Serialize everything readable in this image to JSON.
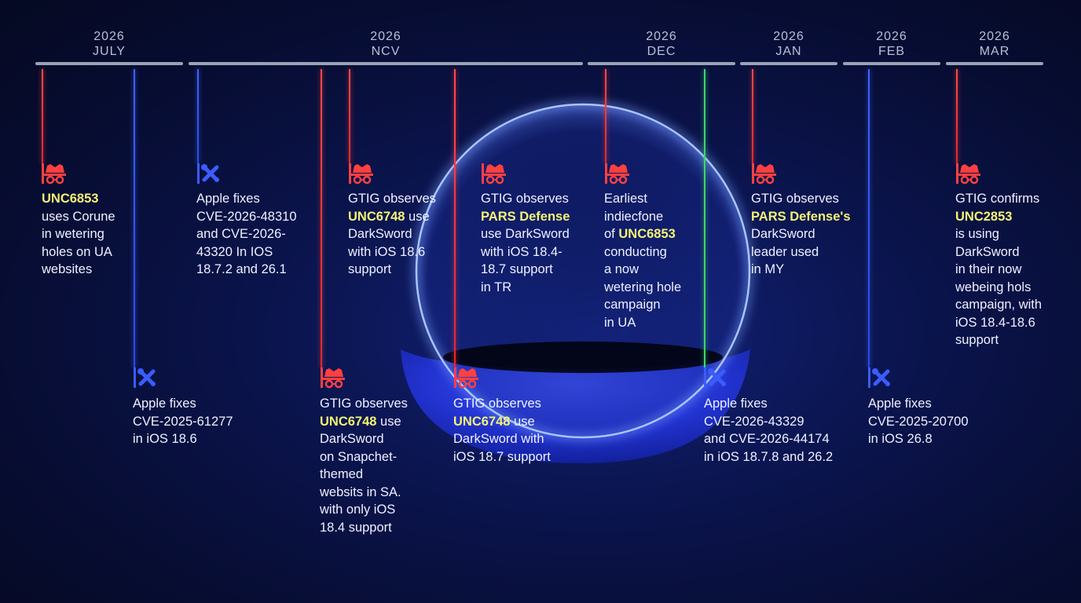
{
  "colors": {
    "red_event": "#ff4040",
    "blue_event": "#3a5cff",
    "green_event": "#3fd46a",
    "highlight": "#f3f274",
    "background": "#070d33"
  },
  "months": [
    {
      "year": "2026",
      "month": "JULY"
    },
    {
      "year": "2026",
      "month": "NCV"
    },
    {
      "year": "2026",
      "month": "DEC"
    },
    {
      "year": "2026",
      "month": "JAN"
    },
    {
      "year": "2026",
      "month": "FEB"
    },
    {
      "year": "2026",
      "month": "MAR"
    }
  ],
  "events": {
    "e1": {
      "icon": "spy-icon",
      "hl1": "UNC6853",
      "l2": "uses Corune",
      "l3": "in wetering",
      "l4": "holes on UA",
      "l5": "websites"
    },
    "e2": {
      "icon": "tools-icon",
      "l1": "Apple fixes",
      "l2": "CVE-2025-61277",
      "l3": "in iOS 18.6"
    },
    "e3": {
      "icon": "tools-icon",
      "l1": "Apple fixes",
      "l2": "CVE-2026-48310",
      "l3": "and CVE-2026-",
      "l4": "43320 In IOS",
      "l5": "18.7.2 and 26.1"
    },
    "e4": {
      "icon": "spy-icon",
      "l1": "GTIG observes",
      "hl2": "UNC6748",
      "l2b": " use",
      "l3": "DarkSword",
      "l4": "on Snapchet-",
      "l5": "themed",
      "l6": "websits in SA.",
      "l7": "with only iOS",
      "l8": "18.4 support"
    },
    "e5": {
      "icon": "spy-icon",
      "l1": "GTIG observes",
      "hl2": "UNC6748",
      "l2b": " use",
      "l3": "DarkSword",
      "l4": "with iOS 18.6",
      "l5": "support"
    },
    "e6": {
      "icon": "spy-icon",
      "l1": "GTIG observes",
      "hl2": "UNC6748",
      "l2b": " use",
      "l3": "DarkSword with",
      "l4": "iOS 18.7 support"
    },
    "e7": {
      "icon": "spy-icon",
      "l1": "GTIG observes",
      "hl2": "PARS Defense",
      "l3": "use DarkSword",
      "l4": "with iOS 18.4-",
      "l5": "18.7 support",
      "l6": "in TR"
    },
    "e8": {
      "icon": "spy-icon",
      "l1": "Earliest",
      "l2": "indiecfone",
      "l3a": "of ",
      "hl3": "UNC6853",
      "l4": "conducting",
      "l5": "a now",
      "l6": "wetering hole",
      "l7": "campaign",
      "l8": "in UA"
    },
    "e9": {
      "icon": "tools-icon",
      "l1": "Apple fixes",
      "l2": "CVE-2026-43329",
      "l3": "and CVE-2026-44174",
      "l4": "in iOS 18.7.8 and 26.2"
    },
    "e10": {
      "icon": "spy-icon",
      "l1": "GTIG observes",
      "hl2": "PARS Defense's",
      "l3": "DarkSword",
      "l4": "leader used",
      "l5": "in MY"
    },
    "e11": {
      "icon": "tools-icon",
      "l1": "Apple fixes",
      "l2": "CVE-2025-20700",
      "l3": "in iOS 26.8"
    },
    "e12": {
      "icon": "spy-icon",
      "l1": "GTIG confirms",
      "hl2": "UNC2853",
      "l3": "is using",
      "l4": "DarkSword",
      "l5": "in their now",
      "l6": "webeing hols",
      "l7": "campaign, with",
      "l8": "iOS 18.4-18.6",
      "l9": "support"
    }
  }
}
